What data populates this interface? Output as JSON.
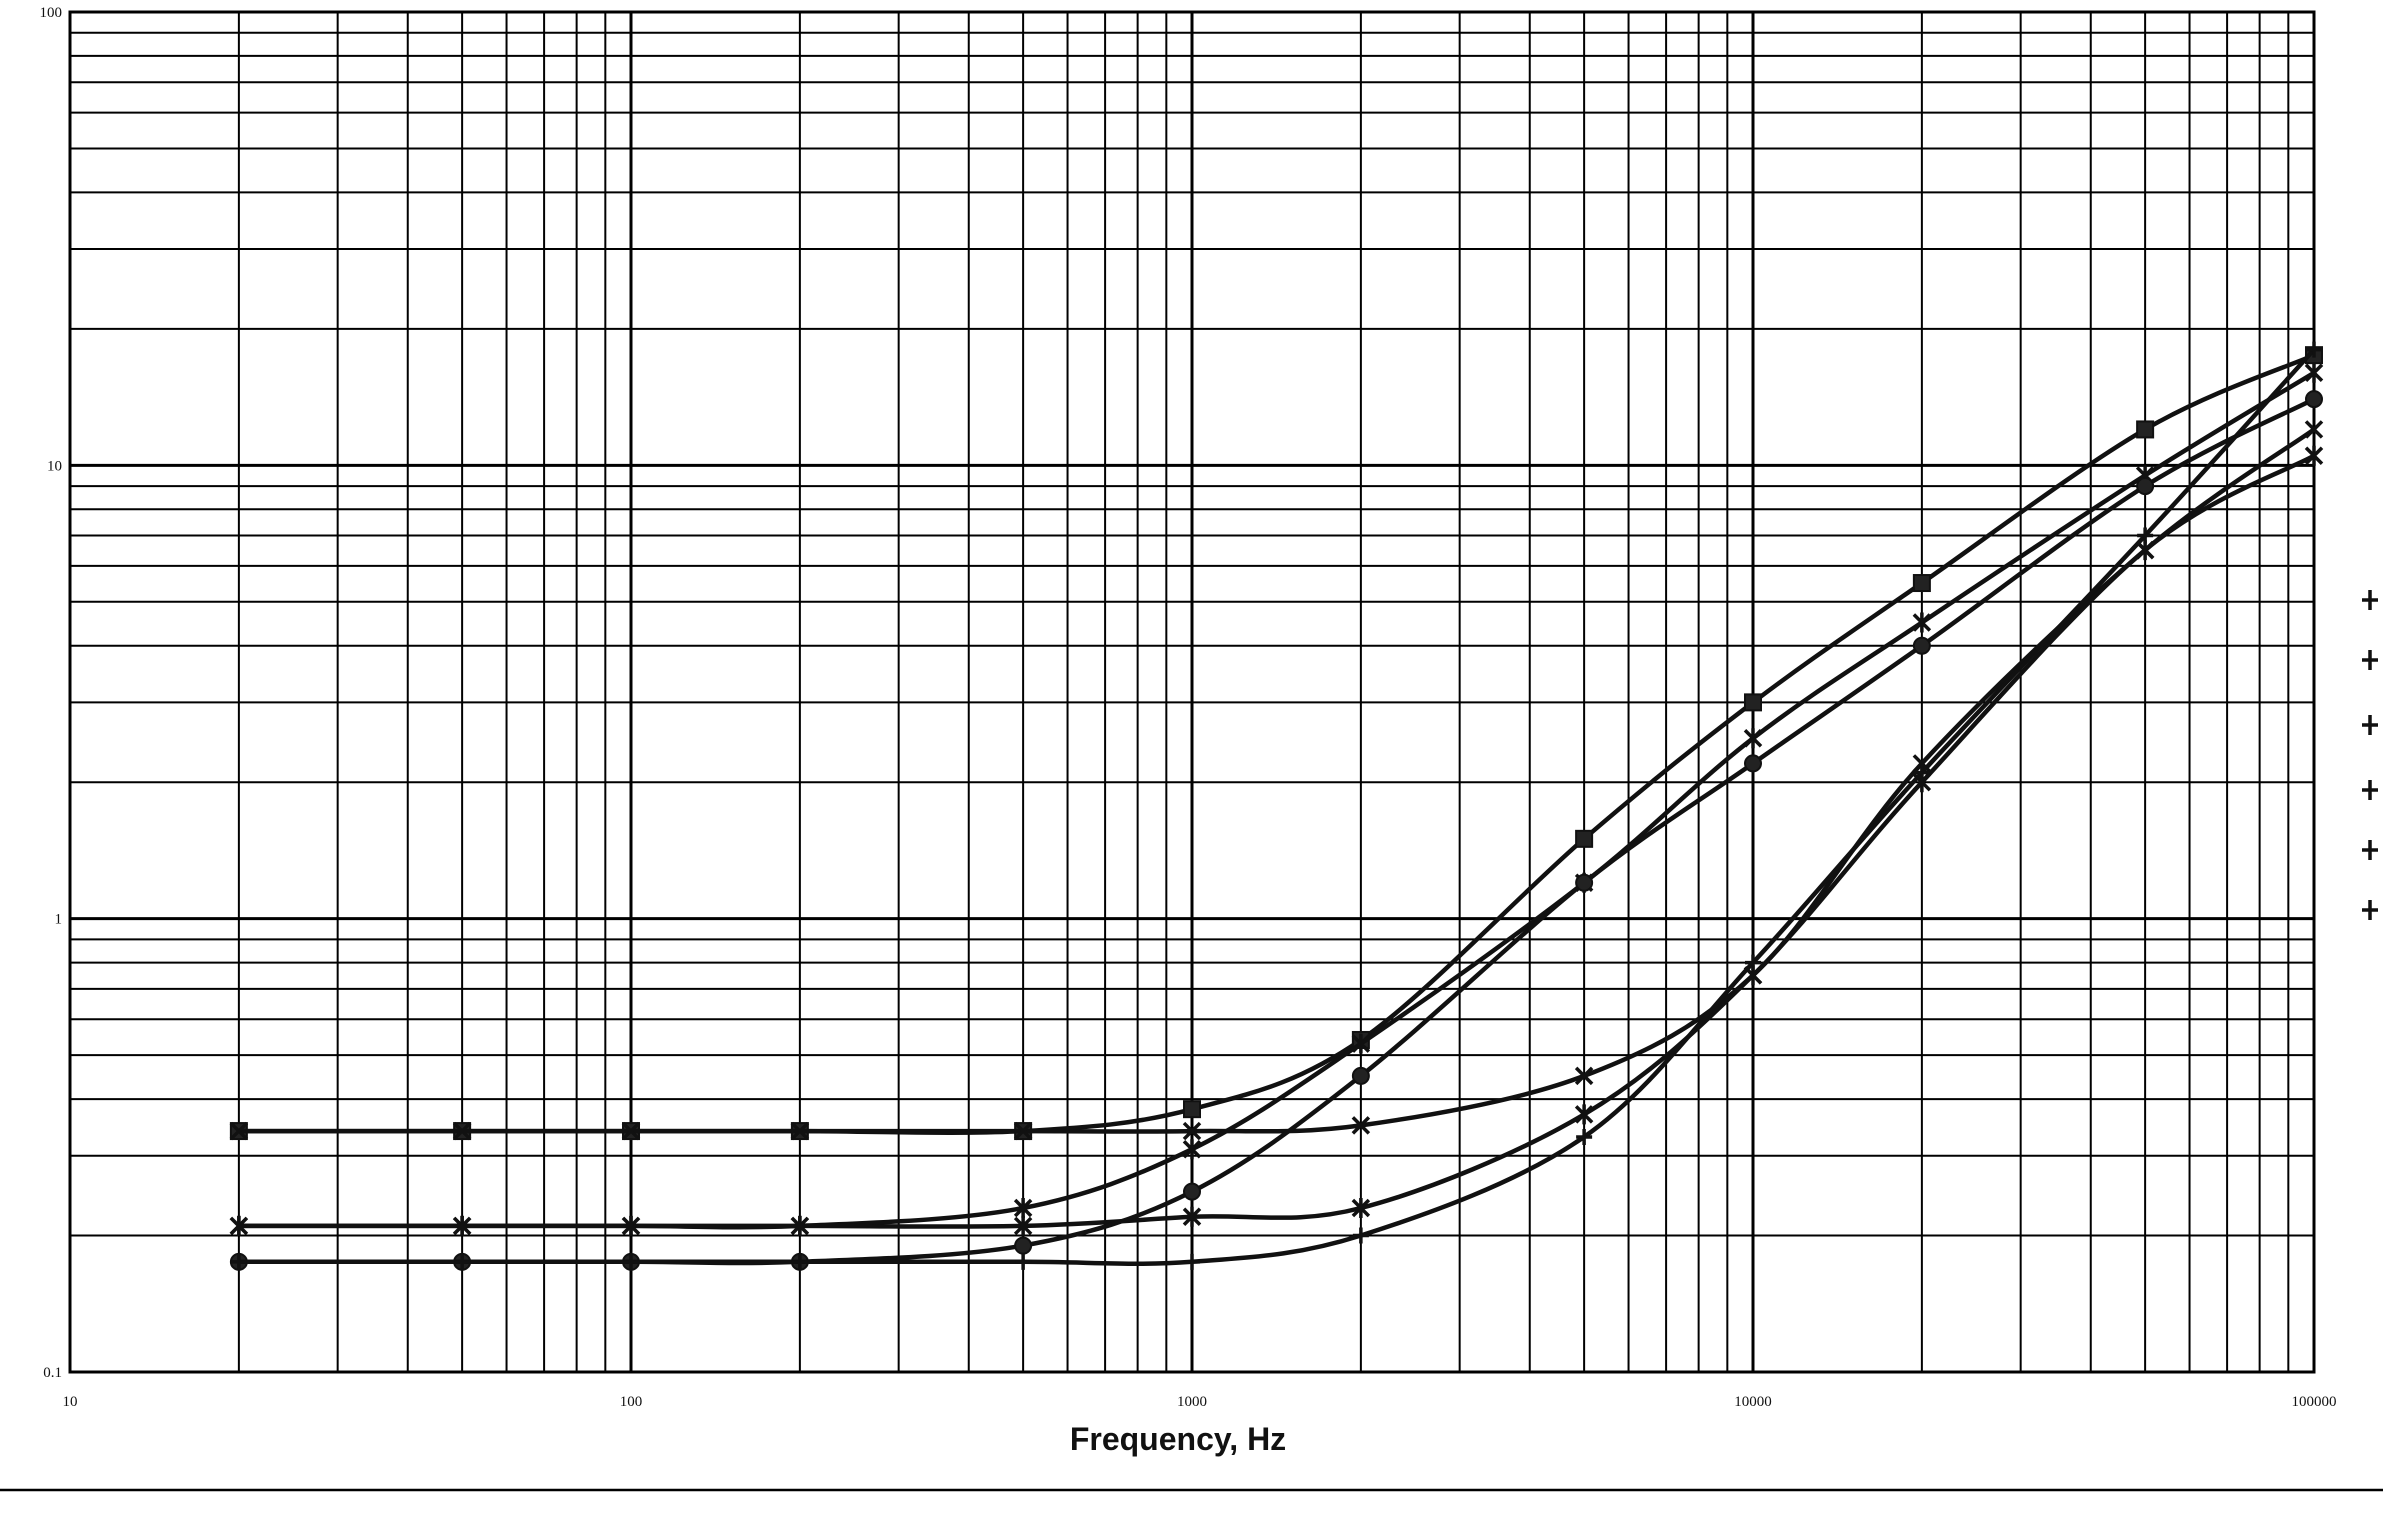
{
  "chart_data": {
    "type": "line",
    "title": "",
    "xlabel": "Frequency, Hz",
    "ylabel": "",
    "x_scale": "log",
    "y_scale": "log",
    "xlim": [
      10,
      100000
    ],
    "ylim": [
      0.1,
      100
    ],
    "grid": true,
    "legend": "right (cropped, unreadable)",
    "x_tick_labels": [
      {
        "value": 10,
        "label": "10"
      },
      {
        "value": 100,
        "label": "100"
      },
      {
        "value": 1000,
        "label": "1000"
      },
      {
        "value": 10000,
        "label": "10000"
      },
      {
        "value": 100000,
        "label": "100000"
      }
    ],
    "y_tick_labels": [
      {
        "value": 0.1,
        "label": "0.1"
      },
      {
        "value": 1,
        "label": "1"
      },
      {
        "value": 10,
        "label": "10"
      },
      {
        "value": 100,
        "label": "100"
      }
    ],
    "x": [
      20,
      50,
      100,
      200,
      500,
      1000,
      2000,
      5000,
      10000,
      20000,
      50000,
      100000
    ],
    "series": [
      {
        "marker": "square",
        "values": [
          0.34,
          0.34,
          0.34,
          0.34,
          0.34,
          0.38,
          0.54,
          1.5,
          3.0,
          5.5,
          12.0,
          17.5
        ]
      },
      {
        "marker": "x",
        "values": [
          0.34,
          0.34,
          0.34,
          0.34,
          0.34,
          0.34,
          0.35,
          0.45,
          0.75,
          2.2,
          6.5,
          12.0
        ]
      },
      {
        "marker": "star",
        "values": [
          0.21,
          0.21,
          0.21,
          0.21,
          0.23,
          0.31,
          0.53,
          1.2,
          2.5,
          4.5,
          9.5,
          16.0
        ]
      },
      {
        "marker": "asterisk",
        "values": [
          0.21,
          0.21,
          0.21,
          0.21,
          0.21,
          0.22,
          0.23,
          0.37,
          0.75,
          2.0,
          6.5,
          10.5
        ]
      },
      {
        "marker": "circle",
        "values": [
          0.175,
          0.175,
          0.175,
          0.175,
          0.19,
          0.25,
          0.45,
          1.2,
          2.2,
          4.0,
          9.0,
          14.0
        ]
      },
      {
        "marker": "plus",
        "values": [
          0.175,
          0.175,
          0.175,
          0.175,
          0.175,
          0.175,
          0.2,
          0.33,
          0.8,
          2.1,
          7.0,
          18.0
        ]
      }
    ]
  }
}
